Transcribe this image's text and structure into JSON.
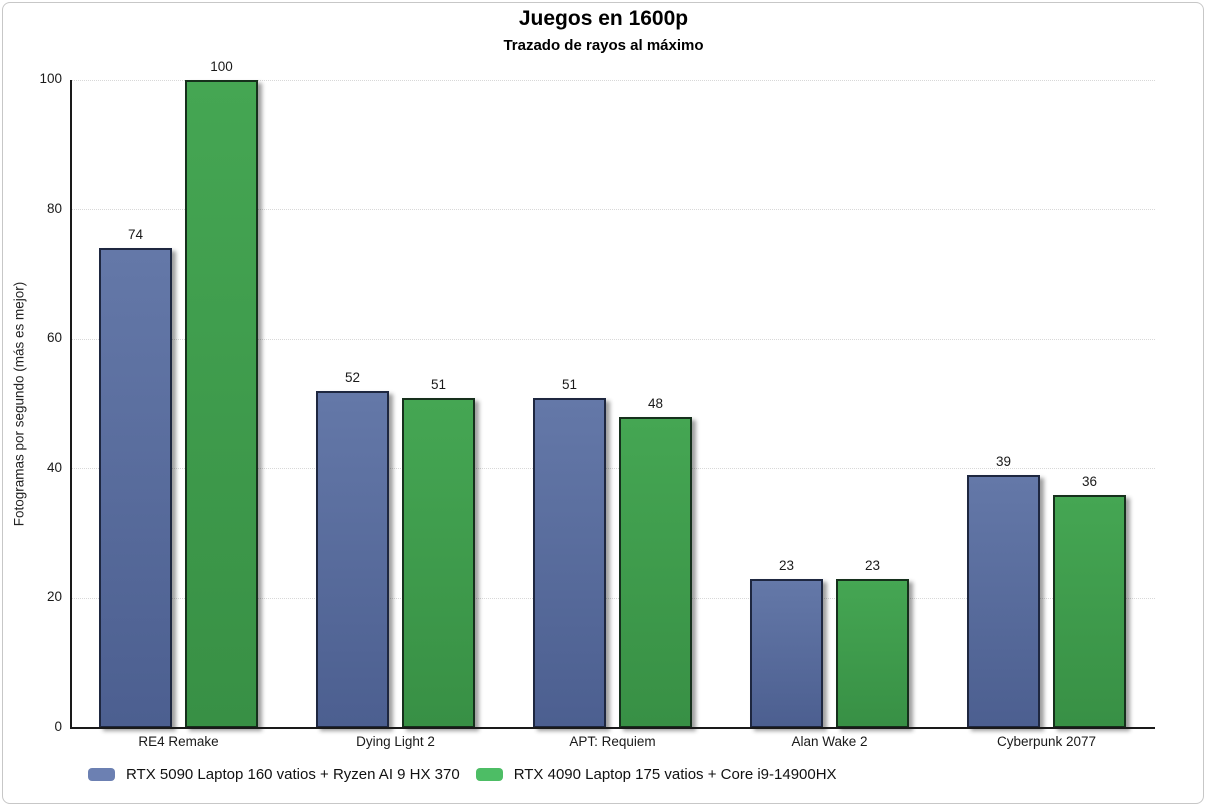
{
  "title": "Juegos en 1600p",
  "subtitle": "Trazado de rayos al máximo",
  "chart_data": {
    "type": "bar",
    "title": "Juegos en 1600p",
    "subtitle": "Trazado de rayos al máximo",
    "categories": [
      "RE4 Remake",
      "Dying Light 2",
      "APT: Requiem",
      "Alan Wake 2",
      "Cyberpunk 2077"
    ],
    "series": [
      {
        "name": "RTX 5090 Laptop 160 vatios + Ryzen AI 9 HX 370",
        "values": [
          74,
          52,
          51,
          23,
          39
        ],
        "color_top": "#6478a8",
        "color_bottom": "#4c5f90",
        "border_color": "#1e2740",
        "legend_color": "#6c80b2"
      },
      {
        "name": "RTX 4090 Laptop 175 vatios + Core i9-14900HX",
        "values": [
          100,
          51,
          48,
          23,
          36
        ],
        "color_top": "#45a653",
        "color_bottom": "#389045",
        "border_color": "#16301c",
        "legend_color": "#4dbd65"
      }
    ],
    "xlabel": "",
    "ylabel": "Fotogramas por segundo (más es mejor)",
    "ylim": [
      0,
      100
    ],
    "yticks": [
      0,
      20,
      40,
      60,
      80,
      100
    ],
    "grid": "horizontal-dotted",
    "grid_color": "#d8d8d8",
    "axis_color": "#1a1a1a",
    "legend_position": "bottom",
    "value_labels": true
  }
}
